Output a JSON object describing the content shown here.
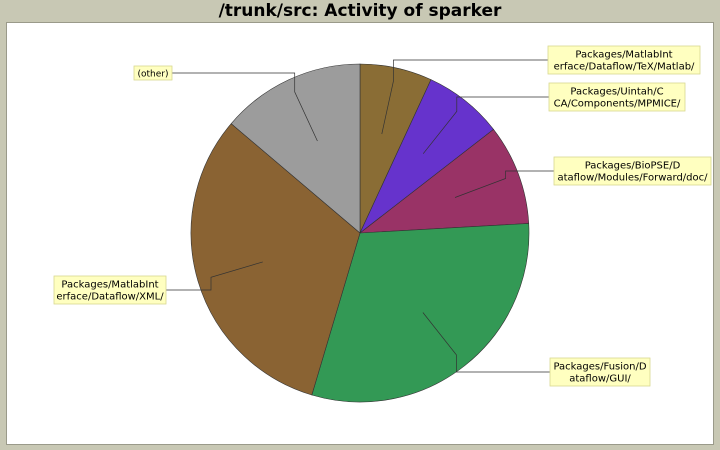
{
  "chart_data": {
    "type": "pie",
    "title": "/trunk/src: Activity of sparker",
    "slices": [
      {
        "label": "Packages/MatlabInt erface/Dataflow/TeX/Matlab/",
        "lines": [
          "Packages/MatlabInt",
          "erface/Dataflow/TeX/Matlab/"
        ],
        "value": 6.9,
        "color": "#8a6d35"
      },
      {
        "label": "Packages/Uintah/C CA/Components/MPMICE/",
        "lines": [
          "Packages/Uintah/C",
          "CA/Components/MPMICE/"
        ],
        "value": 7.6,
        "color": "#6633cc"
      },
      {
        "label": "Packages/BioPSE/D ataflow/Modules/Forward/doc/",
        "lines": [
          "Packages/BioPSE/D",
          "ataflow/Modules/Forward/doc/"
        ],
        "value": 9.6,
        "color": "#993366"
      },
      {
        "label": "Packages/Fusion/D ataflow/GUI/",
        "lines": [
          "Packages/Fusion/D",
          "ataflow/GUI/"
        ],
        "value": 30.5,
        "color": "#339955"
      },
      {
        "label": "Packages/MatlabInt erface/Dataflow/XML/",
        "lines": [
          "Packages/MatlabInt",
          "erface/Dataflow/XML/"
        ],
        "value": 31.6,
        "color": "#8a6333"
      },
      {
        "label": "(other)",
        "lines": [
          "(other)"
        ],
        "value": 13.8,
        "color": "#9c9c9c"
      }
    ]
  }
}
